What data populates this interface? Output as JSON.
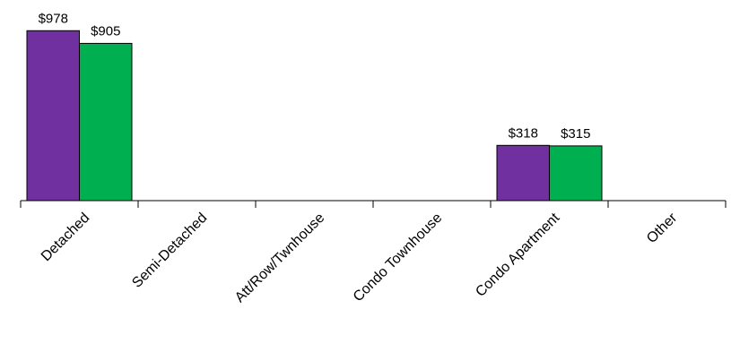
{
  "chart_data": {
    "type": "bar",
    "title": "",
    "xlabel": "",
    "ylabel": "",
    "ylim": [
      0,
      1000
    ],
    "grid": false,
    "legend": "none",
    "categories": [
      "Detached",
      "Semi-Detached",
      "Att/Row/Twnhouse",
      "Condo Townhouse",
      "Condo Apartment",
      "Other"
    ],
    "series": [
      {
        "color": "#7030A0",
        "values": [
          978,
          null,
          null,
          null,
          318,
          null
        ],
        "labels": [
          "$978",
          "",
          "",
          "",
          "$318",
          ""
        ]
      },
      {
        "color": "#00B050",
        "values": [
          905,
          null,
          null,
          null,
          315,
          null
        ],
        "labels": [
          "$905",
          "",
          "",
          "",
          "$315",
          ""
        ]
      }
    ]
  }
}
